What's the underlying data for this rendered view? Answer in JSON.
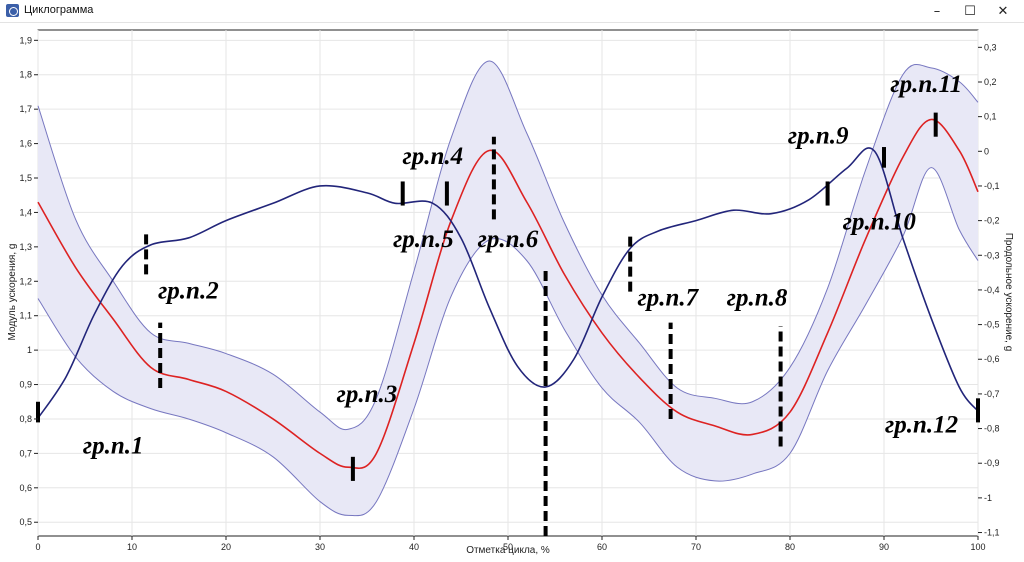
{
  "window": {
    "title": "Циклограмма",
    "minimize_glyph": "–",
    "maximize_glyph": "☐",
    "close_glyph": "✕",
    "app_icon": "runner-icon"
  },
  "chart_data": {
    "type": "line",
    "xlabel": "Отметка цикла, %",
    "ylabel_left": "Модуль ускорения, g",
    "ylabel_right": "Продольное ускорение, g",
    "xlim": [
      0,
      100
    ],
    "ylim_left": [
      0.46,
      1.93
    ],
    "ylim_right": [
      -1.11,
      0.35
    ],
    "x_ticks": [
      "0",
      "10",
      "20",
      "30",
      "40",
      "50",
      "60",
      "70",
      "80",
      "90",
      "100"
    ],
    "y_ticks_left": [
      "0,5",
      "0,6",
      "0,7",
      "0,8",
      "0,9",
      "1",
      "1,1",
      "1,2",
      "1,3",
      "1,4",
      "1,5",
      "1,6",
      "1,7",
      "1,8",
      "1,9"
    ],
    "y_ticks_right": [
      "-1,1",
      "-1",
      "-0,9",
      "-0,8",
      "-0,7",
      "-0,6",
      "-0,5",
      "-0,4",
      "-0,3",
      "-0,2",
      "-0,1",
      "0",
      "0,1",
      "0,2",
      "0,3"
    ],
    "grid": true,
    "colors": {
      "red": "#dd2222",
      "blue": "#22257a",
      "band_fill": "#e8e8f6",
      "band_edge": "#7777c0"
    },
    "series": [
      {
        "axis": "left",
        "color": "#dd2222",
        "x": [
          0,
          4,
          8,
          12,
          16,
          20,
          25,
          30,
          33,
          36,
          40,
          44,
          48,
          52,
          56,
          60,
          64,
          68,
          72,
          76,
          80,
          84,
          88,
          92,
          95,
          98,
          100
        ],
        "values": [
          1.43,
          1.24,
          1.09,
          0.95,
          0.915,
          0.88,
          0.8,
          0.7,
          0.66,
          0.7,
          1.02,
          1.38,
          1.58,
          1.43,
          1.22,
          1.05,
          0.92,
          0.82,
          0.78,
          0.755,
          0.82,
          1.05,
          1.32,
          1.56,
          1.67,
          1.58,
          1.46
        ]
      },
      {
        "axis": "left",
        "type": "band",
        "color": "#e8e8f6",
        "x": [
          0,
          4,
          8,
          12,
          16,
          20,
          25,
          30,
          33,
          36,
          40,
          44,
          48,
          52,
          56,
          60,
          64,
          68,
          72,
          76,
          80,
          84,
          88,
          92,
          95,
          98,
          100
        ],
        "upper": [
          1.71,
          1.38,
          1.2,
          1.05,
          1.02,
          0.99,
          0.93,
          0.82,
          0.77,
          0.86,
          1.23,
          1.62,
          1.84,
          1.63,
          1.37,
          1.16,
          1.02,
          0.89,
          0.86,
          0.85,
          0.95,
          1.18,
          1.52,
          1.8,
          1.82,
          1.78,
          1.72
        ],
        "lower": [
          1.15,
          0.98,
          0.88,
          0.83,
          0.8,
          0.76,
          0.69,
          0.56,
          0.52,
          0.56,
          0.83,
          1.16,
          1.32,
          1.26,
          1.06,
          0.89,
          0.79,
          0.66,
          0.62,
          0.64,
          0.7,
          0.94,
          1.13,
          1.33,
          1.53,
          1.35,
          1.26
        ]
      },
      {
        "axis": "right",
        "color": "#22257a",
        "x": [
          0,
          3,
          6,
          9,
          12,
          16,
          20,
          25,
          30,
          35,
          38,
          42,
          45,
          48,
          51,
          54,
          57,
          60,
          63,
          66,
          70,
          74,
          78,
          82,
          86,
          89,
          92,
          95,
          98,
          100
        ],
        "values": [
          -0.77,
          -0.65,
          -0.47,
          -0.33,
          -0.27,
          -0.25,
          -0.2,
          -0.15,
          -0.1,
          -0.12,
          -0.15,
          -0.15,
          -0.25,
          -0.45,
          -0.62,
          -0.68,
          -0.6,
          -0.42,
          -0.28,
          -0.23,
          -0.2,
          -0.17,
          -0.18,
          -0.14,
          -0.05,
          0.0,
          -0.25,
          -0.48,
          -0.68,
          -0.75
        ]
      }
    ],
    "annotations": [
      {
        "text": "гр.п.1",
        "x": 8,
        "y": 0.7
      },
      {
        "text": "гр.п.2",
        "x": 16,
        "y": 1.15
      },
      {
        "text": "гр.п.3",
        "x": 35,
        "y": 0.85
      },
      {
        "text": "гр.п.4",
        "x": 42,
        "y": 1.54
      },
      {
        "text": "гр.п.5",
        "x": 41,
        "y": 1.3
      },
      {
        "text": "гр.п.6",
        "x": 50,
        "y": 1.3
      },
      {
        "text": "гр.п.7",
        "x": 67,
        "y": 1.13
      },
      {
        "text": "гр.п.8",
        "x": 76.5,
        "y": 1.13
      },
      {
        "text": "гр.п.9",
        "x": 83,
        "y": 1.6
      },
      {
        "text": "гр.п.10",
        "x": 89.5,
        "y": 1.35
      },
      {
        "text": "гр.п.11",
        "x": 94.5,
        "y": 1.75
      },
      {
        "text": "гр.п.12",
        "x": 94,
        "y": 0.76
      }
    ],
    "markers": [
      {
        "x": 0,
        "y1": 0.79,
        "y2": 0.85,
        "style": "solid"
      },
      {
        "x": 11.5,
        "y1": 1.22,
        "y2": 1.34,
        "style": "dashed"
      },
      {
        "x": 13,
        "y1": 0.89,
        "y2": 1.08,
        "style": "dashed"
      },
      {
        "x": 33.5,
        "y1": 0.62,
        "y2": 0.69,
        "style": "solid"
      },
      {
        "x": 38.8,
        "y1": 1.42,
        "y2": 1.49,
        "style": "solid"
      },
      {
        "x": 43.5,
        "y1": 1.42,
        "y2": 1.49,
        "style": "solid"
      },
      {
        "x": 48.5,
        "y1": 1.38,
        "y2": 1.62,
        "style": "dashed"
      },
      {
        "x": 54,
        "y1": 0.46,
        "y2": 1.23,
        "style": "dashed"
      },
      {
        "x": 63,
        "y1": 1.17,
        "y2": 1.34,
        "style": "dashed"
      },
      {
        "x": 67.3,
        "y1": 0.8,
        "y2": 1.08,
        "style": "dashed"
      },
      {
        "x": 79,
        "y1": 0.72,
        "y2": 1.07,
        "style": "dashed"
      },
      {
        "x": 84,
        "y1": 1.42,
        "y2": 1.49,
        "style": "solid"
      },
      {
        "x": 90,
        "y1": 1.53,
        "y2": 1.59,
        "style": "solid"
      },
      {
        "x": 95.5,
        "y1": 1.62,
        "y2": 1.69,
        "style": "solid"
      },
      {
        "x": 100,
        "y1": 0.79,
        "y2": 0.86,
        "style": "solid"
      }
    ]
  }
}
